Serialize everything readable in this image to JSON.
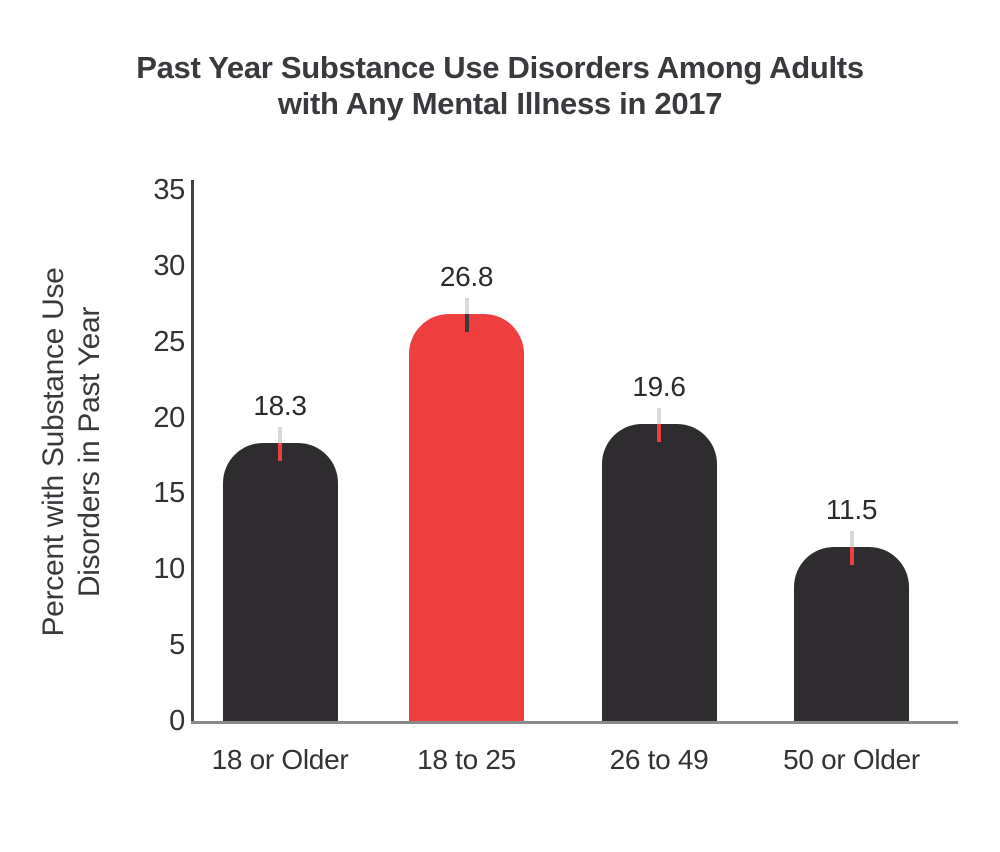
{
  "title": {
    "line1": "Past Year Substance Use Disorders Among Adults",
    "line2": "with Any Mental Illness in 2017"
  },
  "y_axis": {
    "label_line1": "Percent with Substance Use",
    "label_line2": "Disorders in Past Year"
  },
  "chart_data": {
    "type": "bar",
    "title": "Past Year Substance Use Disorders Among Adults with Any Mental Illness in 2017",
    "categories": [
      "18 or Older",
      "18 to 25",
      "26 to 49",
      "50 or Older"
    ],
    "values": [
      18.3,
      26.8,
      19.6,
      11.5
    ],
    "value_labels": [
      "18.3",
      "26.8",
      "19.6",
      "11.5"
    ],
    "series": [
      {
        "name": "Percent with Substance Use Disorders in Past Year",
        "values": [
          18.3,
          26.8,
          19.6,
          11.5
        ]
      }
    ],
    "xlabel": "",
    "ylabel": "Percent with Substance Use Disorders in Past Year",
    "ylim": [
      0,
      35
    ],
    "yticks": [
      0,
      5,
      10,
      15,
      20,
      25,
      30,
      35
    ],
    "grid": false,
    "legend_position": "none",
    "highlighted_category": "18 to 25",
    "bar_colors": [
      "#2e2c2e",
      "#ee3f3e",
      "#2e2c2e",
      "#2e2c2e"
    ],
    "error_tick_inner_colors": [
      "#ee3f3e",
      "#3a3a3a",
      "#ee3f3e",
      "#ee3f3e"
    ],
    "error_tick_outer_color": "#d9d9d9",
    "colors": {
      "bar_default": "#2e2c2e",
      "bar_highlight": "#ee3f3e",
      "axis_y_line": "#424242",
      "axis_x_line": "#8a8a8a",
      "text": "#3a3a3e"
    }
  }
}
